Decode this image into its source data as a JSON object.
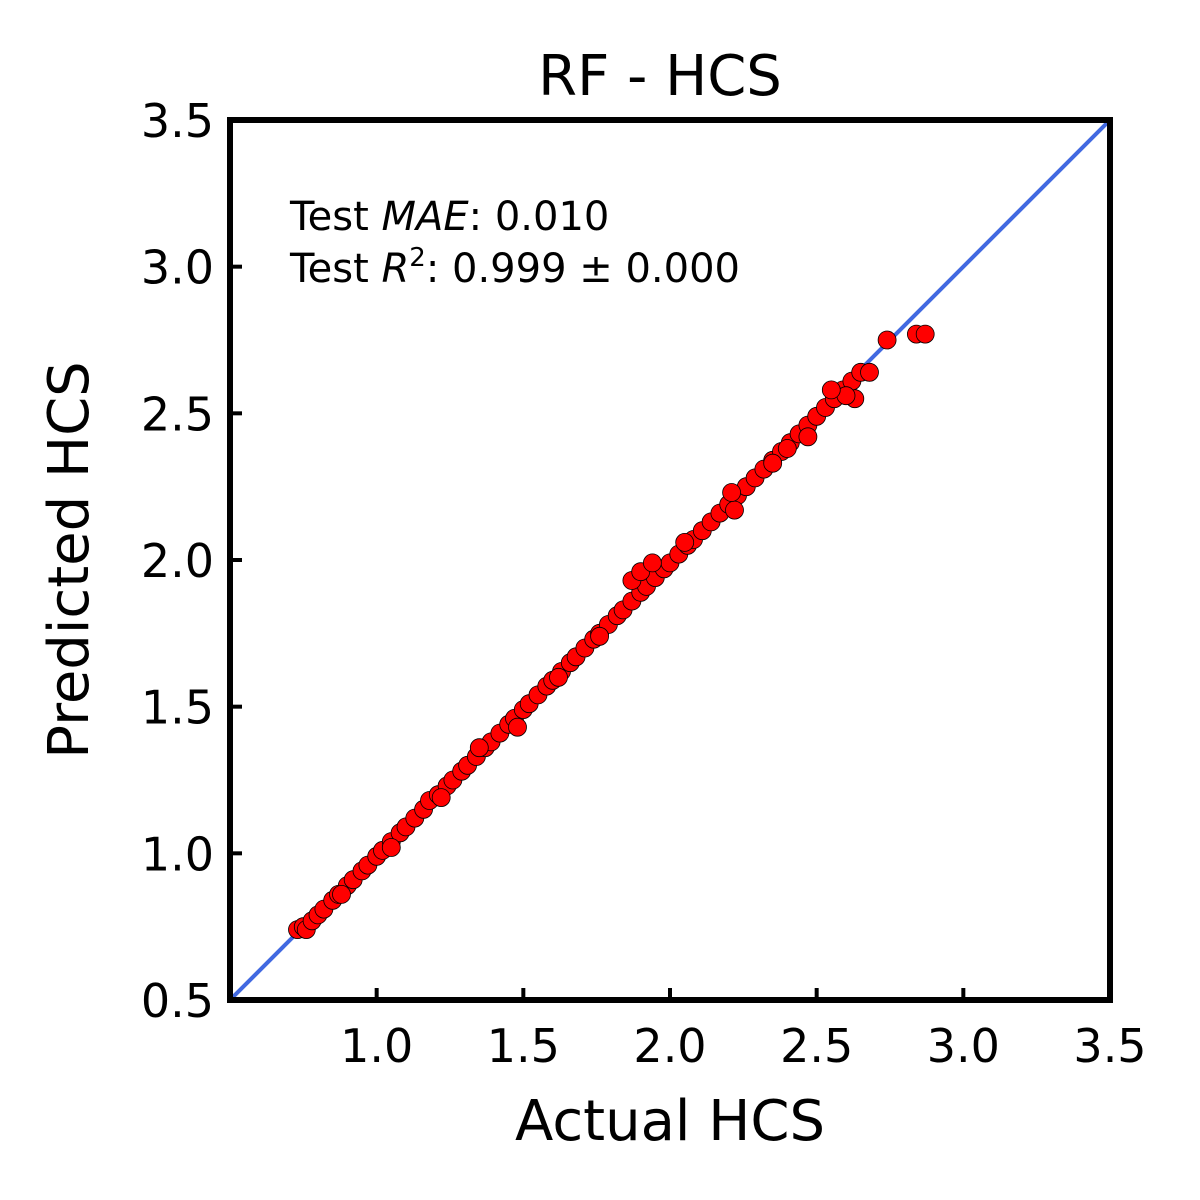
{
  "chart_data": {
    "type": "scatter",
    "title": "RF - HCS",
    "xlabel": "Actual HCS",
    "ylabel": "Predicted HCS",
    "xlim": [
      0.5,
      3.5
    ],
    "ylim": [
      0.5,
      3.5
    ],
    "xticks": [
      "1.0",
      "1.5",
      "2.0",
      "2.5",
      "3.0",
      "3.5"
    ],
    "yticks": [
      "0.5",
      "1.0",
      "1.5",
      "2.0",
      "2.5",
      "3.0",
      "3.5"
    ],
    "grid": false,
    "annotations": {
      "mae_prefix": "Test ",
      "mae_symbol": "MAE",
      "mae_value": ": 0.010",
      "r2_prefix": "Test ",
      "r2_symbol": "R",
      "r2_exp": "2",
      "r2_value": ": 0.999 ± 0.000"
    },
    "reference_line": {
      "from": [
        0.5,
        0.5
      ],
      "to": [
        3.5,
        3.5
      ],
      "color": "#4169e1"
    },
    "marker_color": "#ff0000",
    "series": [
      {
        "points": [
          [
            0.73,
            0.74
          ],
          [
            0.75,
            0.75
          ],
          [
            0.76,
            0.74
          ],
          [
            0.78,
            0.77
          ],
          [
            0.8,
            0.79
          ],
          [
            0.82,
            0.81
          ],
          [
            0.85,
            0.84
          ],
          [
            0.87,
            0.86
          ],
          [
            0.9,
            0.89
          ],
          [
            0.92,
            0.91
          ],
          [
            0.95,
            0.94
          ],
          [
            0.97,
            0.96
          ],
          [
            1.0,
            0.99
          ],
          [
            1.02,
            1.01
          ],
          [
            1.05,
            1.04
          ],
          [
            1.08,
            1.07
          ],
          [
            1.1,
            1.09
          ],
          [
            1.13,
            1.12
          ],
          [
            1.16,
            1.15
          ],
          [
            1.18,
            1.18
          ],
          [
            1.21,
            1.2
          ],
          [
            1.24,
            1.23
          ],
          [
            1.26,
            1.25
          ],
          [
            1.29,
            1.28
          ],
          [
            1.31,
            1.3
          ],
          [
            1.34,
            1.33
          ],
          [
            1.37,
            1.36
          ],
          [
            1.39,
            1.38
          ],
          [
            1.42,
            1.41
          ],
          [
            1.45,
            1.44
          ],
          [
            1.47,
            1.46
          ],
          [
            1.5,
            1.49
          ],
          [
            1.52,
            1.51
          ],
          [
            1.55,
            1.54
          ],
          [
            1.58,
            1.57
          ],
          [
            1.6,
            1.59
          ],
          [
            1.63,
            1.62
          ],
          [
            1.66,
            1.65
          ],
          [
            1.68,
            1.67
          ],
          [
            1.71,
            1.7
          ],
          [
            1.74,
            1.73
          ],
          [
            1.76,
            1.75
          ],
          [
            1.79,
            1.78
          ],
          [
            1.82,
            1.81
          ],
          [
            1.84,
            1.83
          ],
          [
            1.87,
            1.86
          ],
          [
            1.9,
            1.89
          ],
          [
            1.92,
            1.91
          ],
          [
            1.95,
            1.94
          ],
          [
            1.98,
            1.97
          ],
          [
            2.0,
            1.99
          ],
          [
            2.03,
            2.02
          ],
          [
            2.06,
            2.05
          ],
          [
            2.08,
            2.07
          ],
          [
            2.11,
            2.1
          ],
          [
            2.14,
            2.13
          ],
          [
            2.17,
            2.16
          ],
          [
            2.2,
            2.19
          ],
          [
            2.23,
            2.22
          ],
          [
            2.26,
            2.25
          ],
          [
            2.29,
            2.28
          ],
          [
            2.32,
            2.31
          ],
          [
            2.35,
            2.34
          ],
          [
            2.38,
            2.37
          ],
          [
            2.41,
            2.4
          ],
          [
            2.44,
            2.43
          ],
          [
            2.47,
            2.46
          ],
          [
            2.5,
            2.49
          ],
          [
            2.53,
            2.52
          ],
          [
            2.56,
            2.55
          ],
          [
            2.59,
            2.58
          ],
          [
            2.62,
            2.61
          ],
          [
            2.65,
            2.64
          ],
          [
            1.48,
            1.43
          ],
          [
            1.87,
            1.93
          ],
          [
            1.9,
            1.96
          ],
          [
            1.94,
            1.99
          ],
          [
            2.22,
            2.17
          ],
          [
            2.47,
            2.42
          ],
          [
            2.63,
            2.55
          ],
          [
            2.6,
            2.56
          ],
          [
            2.68,
            2.64
          ],
          [
            2.55,
            2.58
          ],
          [
            2.21,
            2.23
          ],
          [
            1.22,
            1.19
          ],
          [
            1.05,
            1.02
          ],
          [
            0.88,
            0.86
          ],
          [
            1.62,
            1.6
          ],
          [
            1.35,
            1.36
          ],
          [
            2.35,
            2.33
          ],
          [
            2.05,
            2.06
          ],
          [
            1.76,
            1.74
          ],
          [
            2.4,
            2.38
          ],
          [
            2.74,
            2.75
          ],
          [
            2.84,
            2.77
          ],
          [
            2.87,
            2.77
          ]
        ]
      }
    ]
  }
}
